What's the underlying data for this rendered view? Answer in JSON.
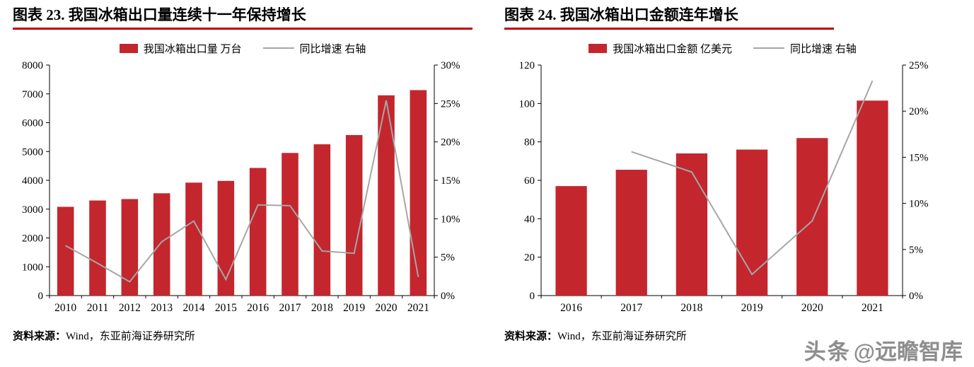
{
  "panels": [
    {
      "title": "图表 23. 我国冰箱出口量连续十一年保持增长",
      "legend_bar": "我国冰箱出口量 万台",
      "legend_line": "同比增速 右轴",
      "source_prefix": "资料来源：",
      "source_body": "Wind，东亚前海证券研究所"
    },
    {
      "title": "图表 24. 我国冰箱出口金额连年增长",
      "legend_bar": "我国冰箱出口金额 亿美元",
      "legend_line": "同比增速 右轴",
      "source_prefix": "资料来源：",
      "source_body": "Wind，东亚前海证券研究所"
    }
  ],
  "chart_data": [
    {
      "type": "bar",
      "combo": "bar+line",
      "title": "图表 23. 我国冰箱出口量连续十一年保持增长",
      "categories": [
        "2010",
        "2011",
        "2012",
        "2013",
        "2014",
        "2015",
        "2016",
        "2017",
        "2018",
        "2019",
        "2020",
        "2021"
      ],
      "series": [
        {
          "name": "我国冰箱出口量 万台",
          "type": "bar",
          "axis": "left",
          "values": [
            3080,
            3300,
            3350,
            3550,
            3920,
            3980,
            4430,
            4950,
            5250,
            5570,
            6950,
            7130
          ]
        },
        {
          "name": "同比增速 右轴",
          "type": "line",
          "axis": "right",
          "values": [
            6.5,
            4.2,
            1.8,
            7.0,
            9.7,
            2.1,
            11.8,
            11.7,
            5.8,
            5.5,
            25.4,
            2.4
          ]
        }
      ],
      "left_axis": {
        "min": 0,
        "max": 8000,
        "step": 1000,
        "format": "number"
      },
      "right_axis": {
        "min": 0,
        "max": 30,
        "step": 5,
        "format": "percent"
      },
      "legend_position": "top",
      "grid": false,
      "xlabel": "",
      "ylabel": "",
      "colors": {
        "bar": "#C4262E",
        "line": "#A6A6A6"
      }
    },
    {
      "type": "bar",
      "combo": "bar+line",
      "title": "图表 24. 我国冰箱出口金额连年增长",
      "categories": [
        "2016",
        "2017",
        "2018",
        "2019",
        "2020",
        "2021"
      ],
      "series": [
        {
          "name": "我国冰箱出口金额 亿美元",
          "type": "bar",
          "axis": "left",
          "values": [
            57,
            65.5,
            74,
            76,
            82,
            101.5
          ]
        },
        {
          "name": "同比增速 右轴",
          "type": "line",
          "axis": "right",
          "values": [
            null,
            15.6,
            13.4,
            2.3,
            8.1,
            23.3
          ]
        }
      ],
      "left_axis": {
        "min": 0,
        "max": 120,
        "step": 20,
        "format": "number"
      },
      "right_axis": {
        "min": 0,
        "max": 25,
        "step": 5,
        "format": "percent"
      },
      "legend_position": "top",
      "grid": false,
      "xlabel": "",
      "ylabel": "",
      "colors": {
        "bar": "#C4262E",
        "line": "#A6A6A6"
      }
    }
  ],
  "watermark": {
    "brand": "头条",
    "handle": "@远瞻智库"
  }
}
